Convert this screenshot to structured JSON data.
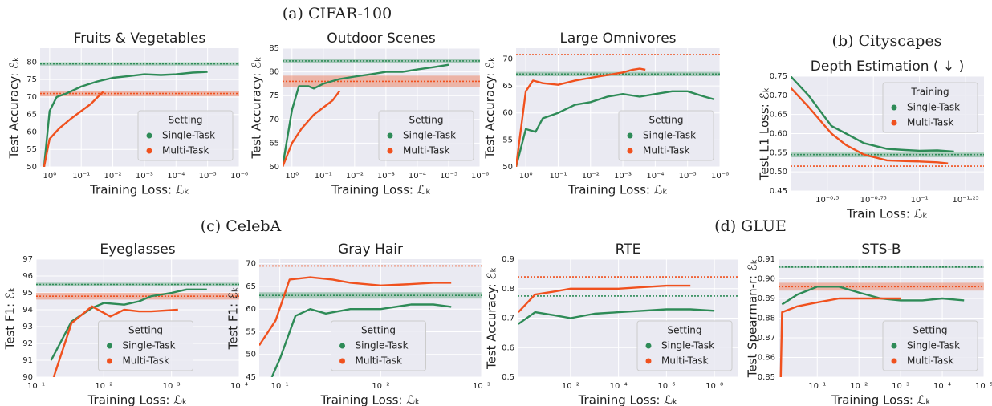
{
  "groups": [
    "(a) CIFAR-100",
    "(b) Cityscapes",
    "(c) CelebA",
    "(d) GLUE"
  ],
  "chart_data": [
    {
      "type": "line",
      "title": "Fruits & Vegetables",
      "xlabel": "Training Loss: ℒₖ",
      "ylabel": "Test Accuracy: ℰₖ",
      "xscale": "log",
      "grid": true,
      "legend": "lower right",
      "legend_title": "Setting",
      "xlim": [
        2,
        1e-06
      ],
      "xticks": [
        {
          "value": 1,
          "label": "10⁰"
        },
        {
          "value": 0.1,
          "label": "10⁻¹"
        },
        {
          "value": 0.01,
          "label": "10⁻²"
        },
        {
          "value": 0.001,
          "label": "10⁻³"
        },
        {
          "value": 0.0001,
          "label": "10⁻⁴"
        },
        {
          "value": 1e-05,
          "label": "10⁻⁵"
        },
        {
          "value": 1e-06,
          "label": "10⁻⁶"
        }
      ],
      "ylim": [
        50,
        84
      ],
      "yticks": [
        50,
        55,
        60,
        65,
        70,
        75,
        80
      ],
      "series": [
        {
          "name": "Single-Task",
          "color": "#2e8b57",
          "x": [
            1.5,
            1,
            0.6,
            0.3,
            0.1,
            0.03,
            0.01,
            0.003,
            0.001,
            0.0003,
            0.0001,
            3e-05,
            1e-05
          ],
          "values": [
            50,
            66,
            70,
            71,
            73,
            74.5,
            75.5,
            76,
            76.5,
            76.3,
            76.5,
            77,
            77.2
          ],
          "baseline": 79.5,
          "band": [
            79,
            80
          ]
        },
        {
          "name": "Multi-Task",
          "color": "#f0511e",
          "x": [
            1.5,
            1,
            0.5,
            0.2,
            0.1,
            0.05,
            0.03,
            0.02
          ],
          "values": [
            50,
            58,
            61,
            64,
            66,
            68,
            70,
            71.5
          ],
          "baseline": 71,
          "band": [
            70.2,
            71.8
          ]
        }
      ]
    },
    {
      "type": "line",
      "title": "Outdoor Scenes",
      "xlabel": "Training Loss: ℒₖ",
      "ylabel": "Test Accuracy: ℰₖ",
      "xscale": "log",
      "grid": true,
      "legend": "lower right",
      "legend_title": "Setting",
      "xlim": [
        2,
        1e-06
      ],
      "xticks": [
        {
          "value": 1,
          "label": "10⁰"
        },
        {
          "value": 0.1,
          "label": "10⁻¹"
        },
        {
          "value": 0.01,
          "label": "10⁻²"
        },
        {
          "value": 0.001,
          "label": "10⁻³"
        },
        {
          "value": 0.0001,
          "label": "10⁻⁴"
        },
        {
          "value": 1e-05,
          "label": "10⁻⁵"
        },
        {
          "value": 1e-06,
          "label": "10⁻⁶"
        }
      ],
      "ylim": [
        60,
        85
      ],
      "yticks": [
        60,
        65,
        70,
        75,
        80,
        85
      ],
      "series": [
        {
          "name": "Single-Task",
          "color": "#2e8b57",
          "x": [
            2,
            1,
            0.6,
            0.3,
            0.2,
            0.1,
            0.03,
            0.01,
            0.003,
            0.001,
            0.0003,
            0.0001,
            3e-05,
            1e-05
          ],
          "values": [
            60,
            72,
            77,
            77,
            76.5,
            77.5,
            78.5,
            79,
            79.5,
            80,
            80,
            80.5,
            81,
            81.5
          ],
          "baseline": 82.3,
          "band": [
            81.8,
            82.8
          ]
        },
        {
          "name": "Multi-Task",
          "color": "#f0511e",
          "x": [
            2,
            1,
            0.5,
            0.2,
            0.1,
            0.05,
            0.03
          ],
          "values": [
            60,
            65,
            68,
            71,
            72.5,
            74,
            76
          ],
          "baseline": 78,
          "band": [
            76.8,
            79.2
          ]
        }
      ]
    },
    {
      "type": "line",
      "title": "Large Omnivores",
      "xlabel": "Training Loss: ℒₖ",
      "ylabel": "Test Accuracy: ℰₖ",
      "xscale": "log",
      "grid": true,
      "legend": "lower right",
      "legend_title": "Setting",
      "xlim": [
        2,
        1e-06
      ],
      "xticks": [
        {
          "value": 1,
          "label": "10⁰"
        },
        {
          "value": 0.1,
          "label": "10⁻¹"
        },
        {
          "value": 0.01,
          "label": "10⁻²"
        },
        {
          "value": 0.001,
          "label": "10⁻³"
        },
        {
          "value": 0.0001,
          "label": "10⁻⁴"
        },
        {
          "value": 1e-05,
          "label": "10⁻⁵"
        },
        {
          "value": 1e-06,
          "label": "10⁻⁶"
        }
      ],
      "ylim": [
        50,
        72
      ],
      "yticks": [
        50,
        55,
        60,
        65,
        70
      ],
      "series": [
        {
          "name": "Single-Task",
          "color": "#2e8b57",
          "x": [
            2,
            1,
            0.5,
            0.3,
            0.1,
            0.03,
            0.01,
            0.003,
            0.001,
            0.0003,
            0.0001,
            3e-05,
            1e-05,
            3e-06,
            1.5e-06
          ],
          "values": [
            50,
            57,
            56.5,
            59,
            60,
            61.5,
            62,
            63,
            63.5,
            63,
            63.5,
            64,
            64,
            63,
            62.5
          ],
          "baseline": 67.2,
          "band": [
            66.8,
            67.6
          ]
        },
        {
          "name": "Multi-Task",
          "color": "#f0511e",
          "x": [
            2,
            1,
            0.6,
            0.3,
            0.1,
            0.03,
            0.01,
            0.003,
            0.001,
            0.0005,
            0.0003,
            0.0002
          ],
          "values": [
            50,
            64,
            66,
            65.5,
            65.2,
            66,
            66.5,
            67,
            67.5,
            68,
            68.2,
            68
          ],
          "baseline": 70.8
        }
      ]
    },
    {
      "type": "line",
      "title": "Depth Estimation ( ↓ )",
      "xlabel": "Train Loss: ℒₖ",
      "ylabel": "Test L1 Loss: ℰₖ",
      "xscale": "log",
      "grid": true,
      "legend": "upper right",
      "legend_title": "Training",
      "xlim": [
        0.5,
        0.0447
      ],
      "xticks": [
        {
          "value": 0.3162,
          "label": "10⁻⁰·⁵"
        },
        {
          "value": 0.1778,
          "label": "10⁻⁰·⁷⁵"
        },
        {
          "value": 0.1,
          "label": "10⁻¹"
        },
        {
          "value": 0.05623,
          "label": "10⁻¹·²⁵"
        }
      ],
      "ylim": [
        0.45,
        0.75
      ],
      "yticks": [
        0.45,
        {
          "value": 0.5,
          "label": "0.50"
        },
        0.55,
        {
          "value": 0.6,
          "label": "0.60"
        },
        0.65,
        {
          "value": 0.7,
          "label": "0.70"
        },
        0.75
      ],
      "series": [
        {
          "name": "Single-Task",
          "color": "#2e8b57",
          "x": [
            0.5,
            0.4,
            0.3,
            0.25,
            0.2,
            0.15,
            0.12,
            0.1,
            0.08,
            0.065
          ],
          "values": [
            0.75,
            0.7,
            0.62,
            0.6,
            0.575,
            0.56,
            0.557,
            0.555,
            0.556,
            0.553
          ],
          "baseline": 0.545,
          "band": [
            0.538,
            0.552
          ]
        },
        {
          "name": "Multi-Task",
          "color": "#f0511e",
          "x": [
            0.5,
            0.4,
            0.3,
            0.25,
            0.2,
            0.15,
            0.12,
            0.1,
            0.08,
            0.07
          ],
          "values": [
            0.72,
            0.67,
            0.6,
            0.57,
            0.545,
            0.53,
            0.528,
            0.527,
            0.525,
            0.522
          ],
          "baseline": 0.515
        }
      ]
    },
    {
      "type": "line",
      "title": "Eyeglasses",
      "xlabel": "Training Loss: ℒₖ",
      "ylabel": "Test F1: ℰₖ",
      "xscale": "log",
      "grid": true,
      "legend": "lower center",
      "legend_title": "Setting",
      "xlim": [
        0.1,
        0.0001
      ],
      "xticks": [
        {
          "value": 0.1,
          "label": "10⁻¹"
        },
        {
          "value": 0.01,
          "label": "10⁻²"
        },
        {
          "value": 0.001,
          "label": "10⁻³"
        },
        {
          "value": 0.0001,
          "label": "10⁻⁴"
        }
      ],
      "ylim": [
        90,
        97
      ],
      "yticks": [
        90,
        91,
        92,
        93,
        94,
        95,
        96,
        97
      ],
      "series": [
        {
          "name": "Single-Task",
          "color": "#2e8b57",
          "x": [
            0.06,
            0.03,
            0.015,
            0.01,
            0.005,
            0.003,
            0.002,
            0.001,
            0.0006,
            0.0003
          ],
          "values": [
            91,
            93.3,
            94.1,
            94.4,
            94.3,
            94.5,
            94.8,
            95,
            95.2,
            95.2
          ],
          "baseline": 95.5,
          "band": [
            95.4,
            95.6
          ]
        },
        {
          "name": "Multi-Task",
          "color": "#f0511e",
          "x": [
            0.055,
            0.03,
            0.015,
            0.008,
            0.005,
            0.003,
            0.002,
            0.0008
          ],
          "values": [
            90,
            93.2,
            94.2,
            93.6,
            94,
            93.9,
            93.9,
            94
          ],
          "baseline": 94.8,
          "band": [
            94.6,
            95
          ]
        }
      ]
    },
    {
      "type": "line",
      "title": "Gray Hair",
      "xlabel": "Training Loss: ℒₖ",
      "ylabel": "Test F1: ℰₖ",
      "xscale": "log",
      "grid": true,
      "legend": "lower center",
      "legend_title": "Setting",
      "xlim": [
        0.16,
        0.001
      ],
      "xticks": [
        {
          "value": 0.1,
          "label": "10⁻¹"
        },
        {
          "value": 0.01,
          "label": "10⁻²"
        },
        {
          "value": 0.001,
          "label": "10⁻³"
        }
      ],
      "ylim": [
        45,
        71
      ],
      "yticks": [
        45,
        50,
        55,
        60,
        65,
        70
      ],
      "series": [
        {
          "name": "Single-Task",
          "color": "#2e8b57",
          "x": [
            0.12,
            0.1,
            0.07,
            0.05,
            0.035,
            0.02,
            0.01,
            0.005,
            0.003,
            0.002
          ],
          "values": [
            45,
            49,
            58.5,
            60,
            59,
            60,
            60,
            61,
            61,
            60.5
          ],
          "baseline": 63,
          "band": [
            62.3,
            63.7
          ]
        },
        {
          "name": "Multi-Task",
          "color": "#f0511e",
          "x": [
            0.16,
            0.11,
            0.08,
            0.05,
            0.03,
            0.02,
            0.01,
            0.005,
            0.003,
            0.002
          ],
          "values": [
            52,
            57.5,
            66.5,
            67,
            66.5,
            65.8,
            65.2,
            65.5,
            65.8,
            65.8
          ],
          "baseline": 69.5
        }
      ]
    },
    {
      "type": "line",
      "title": "RTE",
      "xlabel": "Training Loss: ℒₖ",
      "ylabel": "Test Accuracy: ℰₖ",
      "xscale": "log",
      "grid": true,
      "legend": "lower right",
      "legend_title": "Setting",
      "xlim": [
        1.6,
        1e-09
      ],
      "xticks": [
        {
          "value": 0.01,
          "label": "10⁻²"
        },
        {
          "value": 0.0001,
          "label": "10⁻⁴"
        },
        {
          "value": 1e-06,
          "label": "10⁻⁶"
        },
        {
          "value": 1e-08,
          "label": "10⁻⁸"
        }
      ],
      "ylim": [
        0.5,
        0.9
      ],
      "yticks": [
        0.5,
        0.6,
        0.7,
        0.8,
        0.9
      ],
      "series": [
        {
          "name": "Single-Task",
          "color": "#2e8b57",
          "x": [
            1.5,
            0.3,
            0.05,
            0.01,
            0.001,
            0.0001,
            1e-05,
            1e-06,
            1e-07,
            1e-08
          ],
          "values": [
            0.68,
            0.72,
            0.71,
            0.7,
            0.715,
            0.72,
            0.725,
            0.73,
            0.73,
            0.725
          ],
          "baseline": 0.775
        },
        {
          "name": "Multi-Task",
          "color": "#f0511e",
          "x": [
            1.5,
            0.3,
            0.05,
            0.01,
            0.001,
            0.0001,
            1e-05,
            1e-06,
            1e-07
          ],
          "values": [
            0.72,
            0.78,
            0.79,
            0.8,
            0.8,
            0.8,
            0.805,
            0.81,
            0.81
          ],
          "baseline": 0.84
        }
      ]
    },
    {
      "type": "line",
      "title": "STS-B",
      "xlabel": "Training Loss: ℒₖ",
      "ylabel": "Test Spearman-r: ℰₖ",
      "xscale": "log",
      "grid": true,
      "legend": "lower right",
      "legend_title": "Setting",
      "xlim": [
        0.85,
        1e-05
      ],
      "xticks": [
        {
          "value": 0.1,
          "label": "10⁻¹"
        },
        {
          "value": 0.01,
          "label": "10⁻²"
        },
        {
          "value": 0.001,
          "label": "10⁻³"
        },
        {
          "value": 0.0001,
          "label": "10⁻⁴"
        },
        {
          "value": 1e-05,
          "label": "10⁻⁵"
        }
      ],
      "ylim": [
        0.85,
        0.91
      ],
      "yticks": [
        0.85,
        0.86,
        0.87,
        0.88,
        0.89,
        {
          "value": 0.9,
          "label": "0.90"
        },
        0.91
      ],
      "series": [
        {
          "name": "Single-Task",
          "color": "#2e8b57",
          "x": [
            0.7,
            0.3,
            0.1,
            0.03,
            0.01,
            0.003,
            0.001,
            0.0003,
            0.0001,
            3e-05
          ],
          "values": [
            0.887,
            0.892,
            0.896,
            0.896,
            0.893,
            0.89,
            0.889,
            0.889,
            0.89,
            0.889
          ],
          "baseline": 0.906,
          "band": [
            0.9055,
            0.9065
          ]
        },
        {
          "name": "Multi-Task",
          "color": "#f0511e",
          "x": [
            0.75,
            0.7,
            0.3,
            0.1,
            0.03,
            0.01,
            0.003,
            0.001
          ],
          "values": [
            0.85,
            0.883,
            0.886,
            0.888,
            0.89,
            0.89,
            0.89,
            0.89
          ],
          "baseline": 0.896,
          "band": [
            0.894,
            0.898
          ]
        }
      ]
    }
  ]
}
